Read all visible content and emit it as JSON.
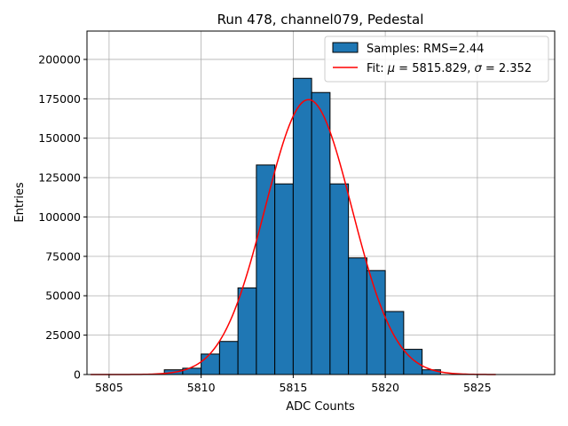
{
  "chart_data": {
    "type": "bar",
    "title": "Run 478, channel079, Pedestal",
    "xlabel": "ADC Counts",
    "ylabel": "Entries",
    "xlim": [
      5803.8,
      5829.2
    ],
    "ylim": [
      0,
      218000
    ],
    "xticks": [
      5805,
      5810,
      5815,
      5820,
      5825
    ],
    "xtick_labels": [
      "5805",
      "5810",
      "5815",
      "5820",
      "5825"
    ],
    "yticks": [
      0,
      25000,
      50000,
      75000,
      100000,
      125000,
      150000,
      175000,
      200000
    ],
    "ytick_labels": [
      "0",
      "25000",
      "50000",
      "75000",
      "100000",
      "125000",
      "150000",
      "175000",
      "200000"
    ],
    "grid": true,
    "legend_position": "top-right",
    "colors": {
      "bar_fill": "#1f77b4",
      "bar_edge": "#000000",
      "fit_line": "#ff0000",
      "grid": "#b0b0b0"
    },
    "series": [
      {
        "name": "Samples: RMS=2.44",
        "kind": "histogram",
        "bin_width": 1,
        "bin_lefts": [
          5808,
          5809,
          5810,
          5811,
          5812,
          5813,
          5814,
          5815,
          5816,
          5817,
          5818,
          5819,
          5820,
          5821,
          5822
        ],
        "values": [
          3000,
          4000,
          13000,
          21000,
          55000,
          133000,
          121000,
          188000,
          179000,
          121000,
          74000,
          66000,
          40000,
          16000,
          3000
        ]
      },
      {
        "name": "Fit: μ = 5815.829, σ = 2.352",
        "kind": "gaussian",
        "mu": 5815.829,
        "sigma": 2.352,
        "amplitude": 174500,
        "x_range": [
          5804,
          5826
        ]
      }
    ],
    "legend": {
      "samples_label": "Samples: RMS=2.44",
      "fit_label_prefix": "Fit: ",
      "fit_mu_symbol": "μ",
      "fit_mu_value": " = 5815.829, ",
      "fit_sigma_symbol": "σ",
      "fit_sigma_value": " = 2.352"
    }
  }
}
